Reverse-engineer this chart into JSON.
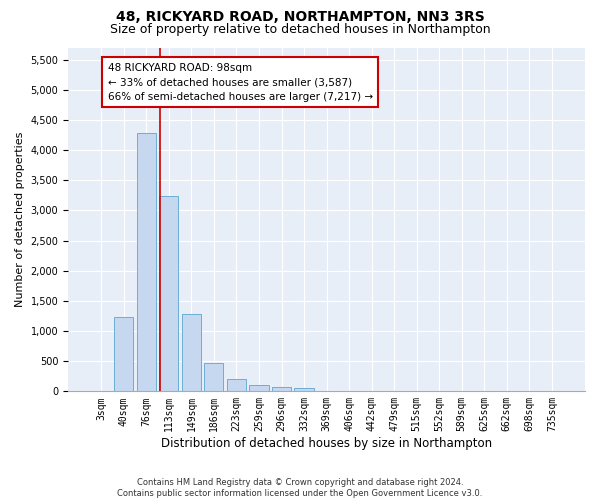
{
  "title": "48, RICKYARD ROAD, NORTHAMPTON, NN3 3RS",
  "subtitle": "Size of property relative to detached houses in Northampton",
  "xlabel": "Distribution of detached houses by size in Northampton",
  "ylabel": "Number of detached properties",
  "categories": [
    "3sqm",
    "40sqm",
    "76sqm",
    "113sqm",
    "149sqm",
    "186sqm",
    "223sqm",
    "259sqm",
    "296sqm",
    "332sqm",
    "369sqm",
    "406sqm",
    "442sqm",
    "479sqm",
    "515sqm",
    "552sqm",
    "589sqm",
    "625sqm",
    "662sqm",
    "698sqm",
    "735sqm"
  ],
  "values": [
    0,
    1230,
    4280,
    3240,
    1290,
    470,
    200,
    100,
    75,
    50,
    0,
    0,
    0,
    0,
    0,
    0,
    0,
    0,
    0,
    0,
    0
  ],
  "bar_color": "#c5d8f0",
  "bar_edge_color": "#6baed6",
  "property_line_color": "#cc0000",
  "annotation_text": "48 RICKYARD ROAD: 98sqm\n← 33% of detached houses are smaller (3,587)\n66% of semi-detached houses are larger (7,217) →",
  "annotation_box_color": "white",
  "annotation_box_edge_color": "#cc0000",
  "ylim": [
    0,
    5700
  ],
  "yticks": [
    0,
    500,
    1000,
    1500,
    2000,
    2500,
    3000,
    3500,
    4000,
    4500,
    5000,
    5500
  ],
  "footnote": "Contains HM Land Registry data © Crown copyright and database right 2024.\nContains public sector information licensed under the Open Government Licence v3.0.",
  "bg_color": "#ffffff",
  "plot_bg_color": "#e8eef8",
  "title_fontsize": 10,
  "subtitle_fontsize": 9,
  "tick_label_fontsize": 7,
  "ylabel_fontsize": 8,
  "xlabel_fontsize": 8.5,
  "footnote_fontsize": 6,
  "annotation_fontsize": 7.5
}
